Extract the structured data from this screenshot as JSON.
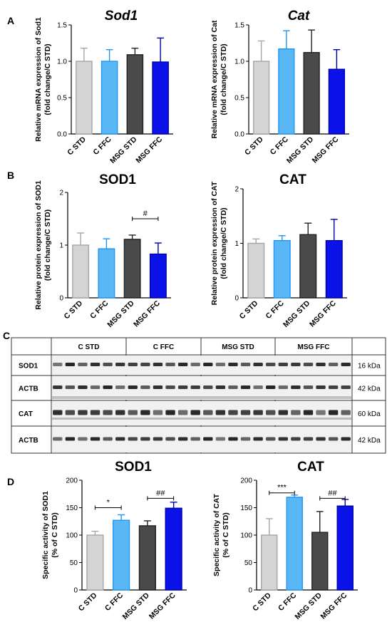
{
  "panel_labels": [
    "A",
    "B",
    "C",
    "D"
  ],
  "colors": {
    "C STD": "#d4d4d4",
    "C FFC": "#5ab7f5",
    "MSG STD": "#4a4a4a",
    "MSG FFC": "#0a12e8",
    "outline_C STD": "#a6a6a6",
    "outline_C FFC": "#2196f3",
    "outline_MSG STD": "#222222",
    "outline_MSG FFC": "#0000aa"
  },
  "chart_data": [
    {
      "id": "A-sod1",
      "type": "bar",
      "title": "Sod1",
      "italic_title": true,
      "ylabel": [
        "Relative mRNA expression of Sod1",
        "(fold change/C STD)"
      ],
      "categories": [
        "C STD",
        "C FFC",
        "MSG STD",
        "MSG FFC"
      ],
      "values": [
        1.0,
        1.0,
        1.09,
        0.99
      ],
      "errors": [
        0.18,
        0.16,
        0.09,
        0.33
      ],
      "ylim": [
        0,
        1.5
      ],
      "yticks": [
        "0.0",
        "0.5",
        "1.0",
        "1.5"
      ],
      "ytick_values": [
        0,
        0.5,
        1.0,
        1.5
      ],
      "annotations": []
    },
    {
      "id": "A-cat",
      "type": "bar",
      "title": "Cat",
      "italic_title": true,
      "ylabel": [
        "Relative mRNA expression of Cat",
        "(fold change/C STD)"
      ],
      "categories": [
        "C STD",
        "C FFC",
        "MSG STD",
        "MSG FFC"
      ],
      "values": [
        1.0,
        1.17,
        1.12,
        0.89
      ],
      "errors": [
        0.28,
        0.25,
        0.31,
        0.27
      ],
      "ylim": [
        0,
        1.5
      ],
      "yticks": [
        "0.0",
        "0.5",
        "1.0",
        "1.5"
      ],
      "ytick_values": [
        0,
        0.5,
        1.0,
        1.5
      ],
      "annotations": []
    },
    {
      "id": "B-sod1",
      "type": "bar",
      "title": "SOD1",
      "italic_title": false,
      "ylabel": [
        "Relative protein expression of SOD1",
        "(fold change/C STD)"
      ],
      "categories": [
        "C STD",
        "C FFC",
        "MSG STD",
        "MSG FFC"
      ],
      "values": [
        1.0,
        0.93,
        1.11,
        0.83
      ],
      "errors": [
        0.23,
        0.19,
        0.08,
        0.21
      ],
      "ylim": [
        0,
        2
      ],
      "yticks": [
        "0",
        "1",
        "2"
      ],
      "ytick_values": [
        0,
        1,
        2
      ],
      "annotations": [
        {
          "from": 2,
          "to": 3,
          "label": "#",
          "y": 1.5
        }
      ]
    },
    {
      "id": "B-cat",
      "type": "bar",
      "title": "CAT",
      "italic_title": false,
      "ylabel": [
        "Relative protein expression of CAT",
        "(fold change/C STD)"
      ],
      "categories": [
        "C STD",
        "C FFC",
        "MSG STD",
        "MSG FFC"
      ],
      "values": [
        1.0,
        1.05,
        1.16,
        1.05
      ],
      "errors": [
        0.08,
        0.09,
        0.21,
        0.39
      ],
      "ylim": [
        0,
        2
      ],
      "yticks": [
        "0",
        "1",
        "2"
      ],
      "ytick_values": [
        0,
        1,
        2
      ],
      "annotations": []
    },
    {
      "id": "D-sod1",
      "type": "bar",
      "title": "SOD1",
      "italic_title": false,
      "ylabel": [
        "Specific activity of SOD1",
        "(% of C STD)"
      ],
      "categories": [
        "C STD",
        "C FFC",
        "MSG STD",
        "MSG FFC"
      ],
      "values": [
        100,
        127,
        117,
        149
      ],
      "errors": [
        7,
        10,
        9,
        11
      ],
      "ylim": [
        0,
        200
      ],
      "yticks": [
        "0",
        "50",
        "100",
        "150",
        "200"
      ],
      "ytick_values": [
        0,
        50,
        100,
        150,
        200
      ],
      "annotations": [
        {
          "from": 0,
          "to": 1,
          "label": "*",
          "y": 150
        },
        {
          "from": 2,
          "to": 3,
          "label": "##",
          "y": 167
        }
      ]
    },
    {
      "id": "D-cat",
      "type": "bar",
      "title": "CAT",
      "italic_title": false,
      "ylabel": [
        "Specific activity of CAT",
        "(% of C STD)"
      ],
      "categories": [
        "C STD",
        "C FFC",
        "MSG STD",
        "MSG FFC"
      ],
      "values": [
        100,
        169,
        105,
        153
      ],
      "errors": [
        30,
        4,
        38,
        12
      ],
      "ylim": [
        0,
        200
      ],
      "yticks": [
        "0",
        "50",
        "100",
        "150",
        "200"
      ],
      "ytick_values": [
        0,
        50,
        100,
        150,
        200
      ],
      "annotations": [
        {
          "from": 0,
          "to": 1,
          "label": "***",
          "y": 177
        },
        {
          "from": 2,
          "to": 3,
          "label": "##",
          "y": 167
        }
      ]
    }
  ],
  "blot": {
    "groups": [
      "C STD",
      "C FFC",
      "MSG STD",
      "MSG FFC"
    ],
    "rows": [
      {
        "label": "SOD1",
        "kda": "16 kDa"
      },
      {
        "label": "ACTB",
        "kda": "42 kDa"
      },
      {
        "label": "CAT",
        "kda": "60 kDa"
      },
      {
        "label": "ACTB",
        "kda": "42 kDa"
      }
    ]
  }
}
